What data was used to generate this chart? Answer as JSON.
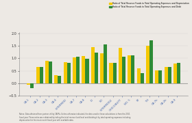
{
  "categories": [
    "CA-1",
    "CA-2",
    "CA-3",
    "CA-4",
    "INTERMOD",
    "CA-7",
    "CA-8",
    "IO",
    "SO",
    "INTERMOD2",
    "CHICO/BUTT",
    "NO. 5",
    "SF",
    "TH",
    "CA-7b",
    "CA-2b",
    "CA-9"
  ],
  "yellow_values": [
    -0.05,
    0.65,
    0.9,
    0.33,
    0.85,
    1.05,
    1.1,
    1.45,
    1.2,
    0.83,
    1.43,
    1.12,
    0.6,
    1.5,
    0.52,
    0.65,
    0.8
  ],
  "green_values": [
    -0.18,
    0.65,
    0.88,
    0.3,
    0.82,
    1.07,
    0.97,
    1.22,
    1.56,
    0.83,
    1.07,
    1.12,
    0.4,
    1.72,
    0.52,
    0.65,
    0.83
  ],
  "yellow_color": "#F5C800",
  "green_color": "#2E8B35",
  "ylim": [
    -0.5,
    2.05
  ],
  "yticks": [
    -0.5,
    0.0,
    0.5,
    1.0,
    1.5,
    2.0
  ],
  "legend_yellow": "Ratio of Total Reserve Funds to Total Operating Expenses and Depreciation",
  "legend_green": "Ratio of Total Reserve Funds to Total Operating Expenses and Debt",
  "bg_color": "#ede9e4",
  "note": "Notes: Data obtained from partner utility CAFRs. Unless otherwise indicated, the data used in these calculations is from the 2011\nfiscal year. These ratios were obtained by taking the total reserve fund level and dividing it by total operating expenses including\ndepreciation for the most recent fiscal year with available data."
}
